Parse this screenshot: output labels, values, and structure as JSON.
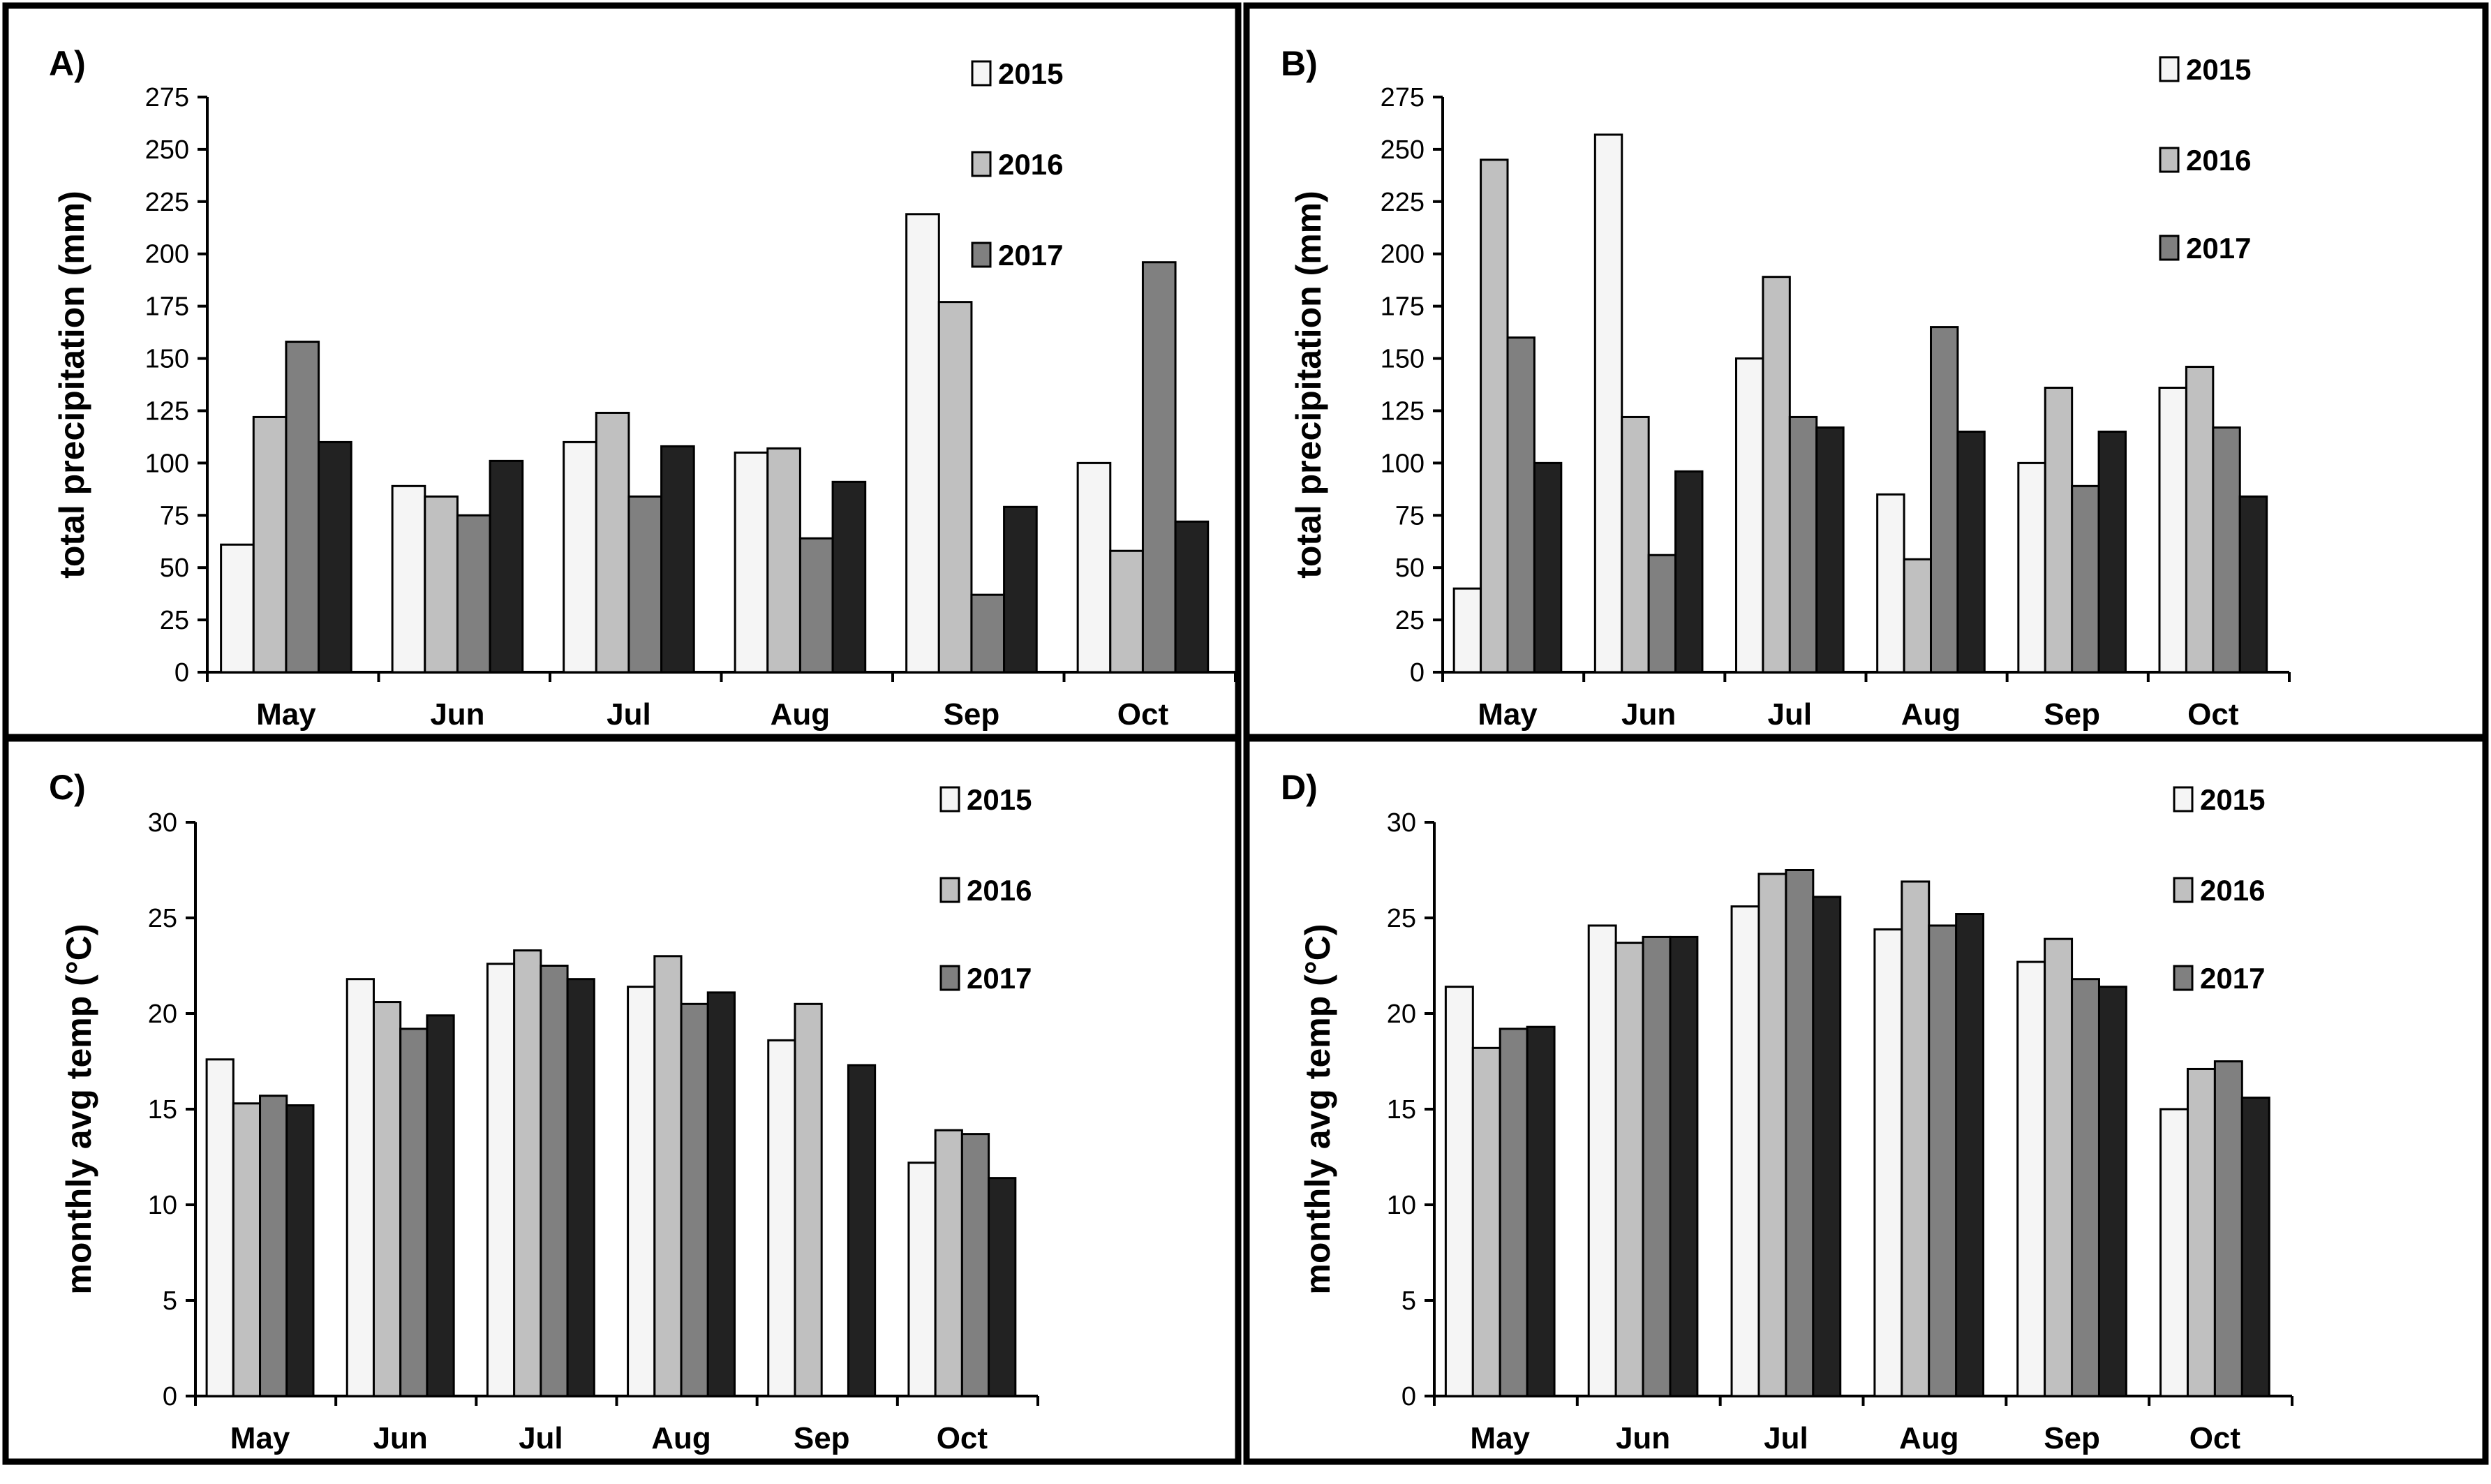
{
  "figure": {
    "panels": [
      "A",
      "B",
      "C",
      "D"
    ]
  },
  "colors": {
    "2015": "#f5f5f5",
    "2016": "#c0c0c0",
    "2017": "#808080",
    "fourth": "#222222"
  },
  "chart_data": [
    {
      "type": "bar",
      "panel_label": "A)",
      "title": "",
      "xlabel": "",
      "ylabel": "total precipitation (mm)",
      "ylim": [
        0,
        275
      ],
      "yticks": [
        0,
        25,
        50,
        75,
        100,
        125,
        150,
        175,
        200,
        225,
        250,
        275
      ],
      "grid": false,
      "legend_position": "top-right",
      "categories": [
        "May",
        "Jun",
        "Jul",
        "Aug",
        "Sep",
        "Oct"
      ],
      "series": [
        {
          "name": "2015",
          "values": [
            61,
            89,
            110,
            105,
            219,
            100
          ]
        },
        {
          "name": "2016",
          "values": [
            122,
            84,
            124,
            107,
            177,
            58
          ]
        },
        {
          "name": "2017",
          "values": [
            158,
            75,
            84,
            64,
            37,
            196
          ]
        },
        {
          "name": "",
          "values": [
            110,
            101,
            108,
            91,
            79,
            72
          ]
        }
      ]
    },
    {
      "type": "bar",
      "panel_label": "B)",
      "title": "",
      "xlabel": "",
      "ylabel": "total precipitation (mm)",
      "ylim": [
        0,
        275
      ],
      "yticks": [
        0,
        25,
        50,
        75,
        100,
        125,
        150,
        175,
        200,
        225,
        250,
        275
      ],
      "grid": false,
      "legend_position": "top-right",
      "categories": [
        "May",
        "Jun",
        "Jul",
        "Aug",
        "Sep",
        "Oct"
      ],
      "series": [
        {
          "name": "2015",
          "values": [
            40,
            257,
            150,
            85,
            100,
            136
          ]
        },
        {
          "name": "2016",
          "values": [
            245,
            122,
            189,
            54,
            136,
            146
          ]
        },
        {
          "name": "2017",
          "values": [
            160,
            56,
            122,
            165,
            89,
            117
          ]
        },
        {
          "name": "",
          "values": [
            100,
            96,
            117,
            115,
            115,
            84
          ]
        }
      ]
    },
    {
      "type": "bar",
      "panel_label": "C)",
      "title": "",
      "xlabel": "",
      "ylabel": "monthly avg temp (°C)",
      "ylim": [
        0,
        30
      ],
      "yticks": [
        0,
        5,
        10,
        15,
        20,
        25,
        30
      ],
      "grid": false,
      "legend_position": "top-right",
      "categories": [
        "May",
        "Jun",
        "Jul",
        "Aug",
        "Sep",
        "Oct"
      ],
      "series": [
        {
          "name": "2015",
          "values": [
            17.6,
            21.8,
            22.6,
            21.4,
            18.6,
            12.2
          ]
        },
        {
          "name": "2016",
          "values": [
            15.3,
            20.6,
            23.3,
            23.0,
            20.5,
            13.9
          ]
        },
        {
          "name": "2017",
          "values": [
            15.7,
            19.2,
            22.5,
            20.5,
            null,
            13.7
          ]
        },
        {
          "name": "",
          "values": [
            15.2,
            19.9,
            21.8,
            21.1,
            17.3,
            11.4
          ]
        }
      ]
    },
    {
      "type": "bar",
      "panel_label": "D)",
      "title": "",
      "xlabel": "",
      "ylabel": "monthly avg temp (°C)",
      "ylim": [
        0,
        30
      ],
      "yticks": [
        0,
        5,
        10,
        15,
        20,
        25,
        30
      ],
      "grid": false,
      "legend_position": "top-right",
      "categories": [
        "May",
        "Jun",
        "Jul",
        "Aug",
        "Sep",
        "Oct"
      ],
      "series": [
        {
          "name": "2015",
          "values": [
            21.4,
            24.6,
            25.6,
            24.4,
            22.7,
            15.0
          ]
        },
        {
          "name": "2016",
          "values": [
            18.2,
            23.7,
            27.3,
            26.9,
            23.9,
            17.1
          ]
        },
        {
          "name": "2017",
          "values": [
            19.2,
            24.0,
            27.5,
            24.6,
            21.8,
            17.5
          ]
        },
        {
          "name": "",
          "values": [
            19.3,
            24.0,
            26.1,
            25.2,
            21.4,
            15.6
          ]
        }
      ]
    }
  ]
}
